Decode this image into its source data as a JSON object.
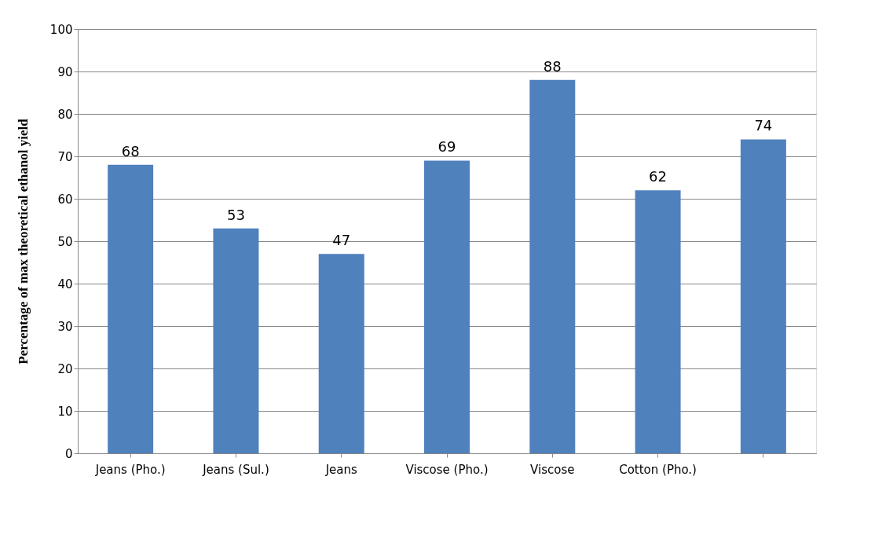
{
  "chart_data": {
    "type": "bar",
    "ylabel": "Percentage of max theoretical ethanol yield",
    "categories": [
      "Jeans (Pho.)",
      "Jeans (Sul.)",
      "Jeans",
      "Viscose (Pho.)",
      "Viscose",
      "Cotton (Pho.)",
      null
    ],
    "values": [
      68,
      53,
      47,
      69,
      88,
      62,
      74
    ],
    "color": "#4f81bd",
    "ylim": [
      0,
      100
    ],
    "yticks": [
      0,
      10,
      20,
      30,
      40,
      50,
      60,
      70,
      80,
      90,
      100
    ],
    "grid": "y",
    "data_labels": true
  }
}
